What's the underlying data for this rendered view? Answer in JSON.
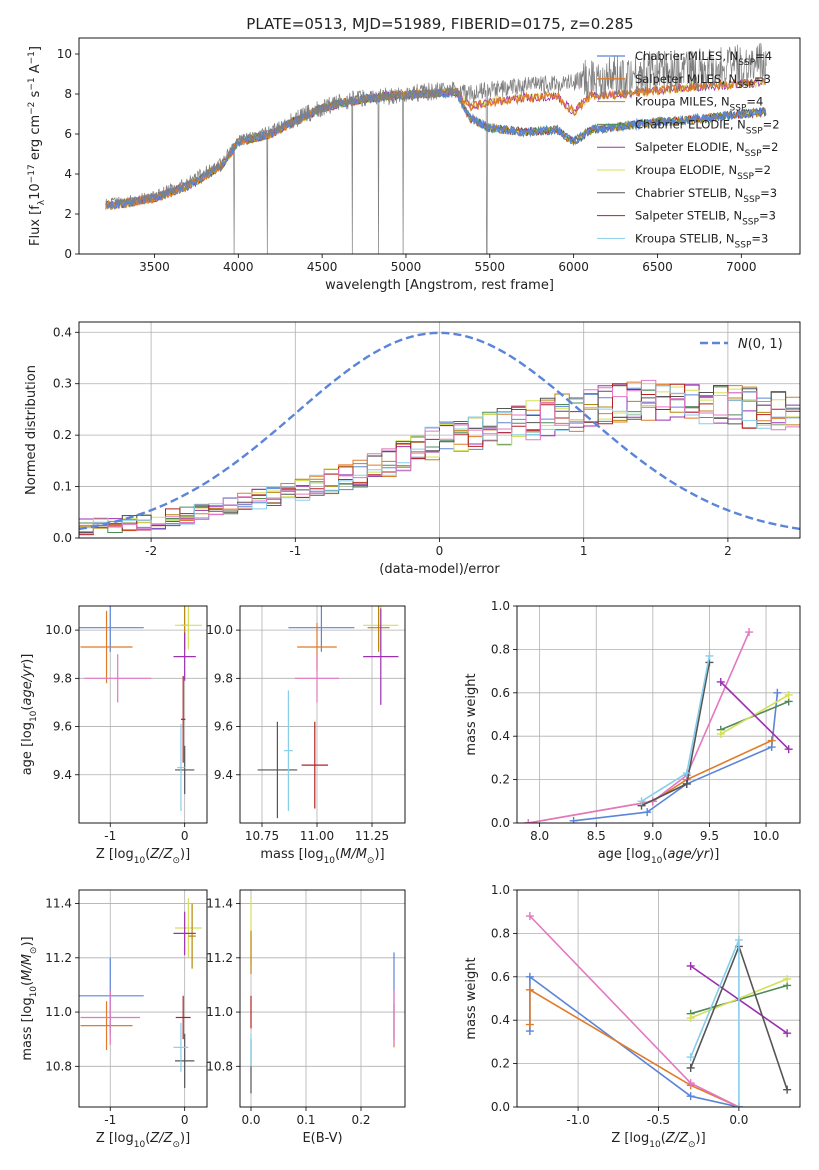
{
  "figure": {
    "title": "PLATE=0513, MJD=51989, FIBERID=0175, z=0.285"
  },
  "chart_data": [
    {
      "id": "spectrum",
      "type": "line",
      "title": "PLATE=0513, MJD=51989, FIBERID=0175, z=0.285",
      "xlabel": "wavelength [Angstrom, rest frame]",
      "ylabel": "Flux [f_λ 10^-17 erg cm^-2 s^-1 A^-1]",
      "xlim": [
        3050,
        7350
      ],
      "ylim": [
        0,
        10.8
      ],
      "xticks": [
        3500,
        4000,
        4500,
        5000,
        5500,
        6000,
        6500,
        7000
      ],
      "yticks": [
        0,
        2,
        4,
        6,
        8,
        10
      ],
      "grid": false,
      "legend": "top-right",
      "data_envelope": {
        "x": [
          3210,
          3300,
          3500,
          3700,
          3900,
          4000,
          4200,
          4300,
          4500,
          4700,
          4900,
          5100,
          5300,
          5380,
          5500,
          5700,
          5900,
          6000,
          6100,
          6300,
          6500,
          6800,
          7000,
          7150
        ],
        "y": [
          2.5,
          2.6,
          2.9,
          3.6,
          4.6,
          5.7,
          6.2,
          6.6,
          7.3,
          7.8,
          7.9,
          8.1,
          8.2,
          8.0,
          8.2,
          8.4,
          8.5,
          8.6,
          8.8,
          8.9,
          9.1,
          9.3,
          9.4,
          9.5
        ]
      },
      "model_high": {
        "x": [
          3210,
          3300,
          3500,
          3700,
          3900,
          4000,
          4200,
          4300,
          4500,
          4700,
          4900,
          5100,
          5300,
          5380,
          5500,
          5700,
          5900,
          6000,
          6100,
          6300,
          6500,
          6800,
          7000,
          7150
        ],
        "y": [
          2.4,
          2.5,
          2.8,
          3.4,
          4.4,
          5.6,
          6.0,
          6.5,
          7.3,
          7.7,
          7.9,
          8.0,
          8.1,
          7.4,
          7.6,
          7.8,
          7.9,
          7.1,
          7.9,
          8.0,
          8.2,
          8.4,
          8.5,
          8.6
        ]
      },
      "model_low": {
        "x": [
          3210,
          3300,
          3500,
          3700,
          3900,
          4000,
          4200,
          4300,
          4500,
          4700,
          4900,
          5100,
          5300,
          5380,
          5500,
          5700,
          5900,
          6000,
          6100,
          6300,
          6500,
          6800,
          7000,
          7150
        ],
        "y": [
          2.4,
          2.5,
          2.8,
          3.4,
          4.4,
          5.6,
          6.0,
          6.5,
          7.3,
          7.7,
          7.9,
          8.0,
          8.1,
          6.8,
          6.3,
          6.1,
          6.2,
          5.6,
          6.2,
          6.4,
          6.6,
          6.8,
          7.0,
          7.1
        ]
      },
      "series": [
        {
          "name": "Chabrier MILES, N_SSP=4",
          "label_main": "Chabrier MILES, N",
          "label_sub": "SSP",
          "label_tail": "=4",
          "color": "#5b85d9",
          "width": 1.3
        },
        {
          "name": "Salpeter MILES, N_SSP=3",
          "label_main": "Salpeter MILES, N",
          "label_sub": "SSP",
          "label_tail": "=3",
          "color": "#e07b2a",
          "width": 1.3
        },
        {
          "name": "Kroupa MILES, N_SSP=4",
          "label_main": "Kroupa MILES, N",
          "label_sub": "SSP",
          "label_tail": "=4",
          "color": "#b8860b",
          "width": 0.8
        },
        {
          "name": "Chabrier ELODIE, N_SSP=2",
          "label_main": "Chabrier ELODIE, N",
          "label_sub": "SSP",
          "label_tail": "=2",
          "color": "#4f8a5a",
          "width": 0.8
        },
        {
          "name": "Salpeter ELODIE, N_SSP=2",
          "label_main": "Salpeter ELODIE, N",
          "label_sub": "SSP",
          "label_tail": "=2",
          "color": "#9b30b0",
          "width": 0.8
        },
        {
          "name": "Kroupa ELODIE, N_SSP=2",
          "label_main": "Kroupa ELODIE, N",
          "label_sub": "SSP",
          "label_tail": "=2",
          "color": "#d5e05a",
          "width": 0.8
        },
        {
          "name": "Chabrier STELIB, N_SSP=3",
          "label_main": "Chabrier STELIB, N",
          "label_sub": "SSP",
          "label_tail": "=3",
          "color": "#555555",
          "width": 0.8
        },
        {
          "name": "Salpeter STELIB, N_SSP=3",
          "label_main": "Salpeter STELIB, N",
          "label_sub": "SSP",
          "label_tail": "=3",
          "color": "#b22222",
          "width": 0.8
        },
        {
          "name": "Kroupa STELIB, N_SSP=3",
          "label_main": "Kroupa STELIB, N",
          "label_sub": "SSP",
          "label_tail": "=3",
          "color": "#87ceeb",
          "width": 0.8
        }
      ]
    },
    {
      "id": "residuals",
      "type": "line",
      "xlabel": "(data-model)/error",
      "ylabel": "Normed distribution",
      "xlim": [
        -2.5,
        2.5
      ],
      "ylim": [
        0,
        0.42
      ],
      "xticks": [
        -2,
        -1,
        0,
        1,
        2
      ],
      "yticks": [
        0.0,
        0.1,
        0.2,
        0.3,
        0.4
      ],
      "grid": true,
      "legend": "top-right",
      "gaussian_label": "N(0, 1)",
      "gaussian": {
        "mu": 0,
        "sigma": 1,
        "color": "#5b85d9"
      },
      "histogram_trend": {
        "x": [
          -2.5,
          -2.0,
          -1.5,
          -1.0,
          -0.5,
          0.0,
          0.5,
          1.0,
          1.5,
          2.0,
          2.5
        ],
        "y": [
          0.02,
          0.03,
          0.06,
          0.09,
          0.13,
          0.19,
          0.22,
          0.25,
          0.27,
          0.26,
          0.24
        ]
      },
      "bin_width": 0.1,
      "series_colors": [
        "#5b85d9",
        "#e07b2a",
        "#b8860b",
        "#4f8a5a",
        "#9b30b0",
        "#d5e05a",
        "#555555",
        "#b22222",
        "#87ceeb",
        "#e377c2"
      ]
    },
    {
      "id": "age_vs_Z",
      "type": "scatter",
      "xlabel": "Z [log10(Z/Z⊙)]",
      "ylabel": "age [log10(age/yr)]",
      "xlim": [
        -1.42,
        0.3
      ],
      "ylim": [
        9.2,
        10.1
      ],
      "xticks": [
        -1,
        0
      ],
      "yticks": [
        9.4,
        9.6,
        9.8,
        10.0
      ],
      "grid": true,
      "points": [
        {
          "x": -1.0,
          "y": 10.01,
          "xerr": 0.45,
          "yerr": 0.1,
          "color": "#5b85d9"
        },
        {
          "x": -1.05,
          "y": 9.93,
          "xerr": 0.35,
          "yerr": 0.15,
          "color": "#e07b2a"
        },
        {
          "x": -0.9,
          "y": 9.8,
          "xerr": 0.45,
          "yerr": 0.1,
          "color": "#e377c2"
        },
        {
          "x": 0.0,
          "y": 10.02,
          "xerr": 0.05,
          "yerr": 0.1,
          "color": "#b8860b"
        },
        {
          "x": 0.05,
          "y": 10.02,
          "xerr": 0.18,
          "yerr": 0.1,
          "color": "#d5e05a"
        },
        {
          "x": 0.0,
          "y": 9.89,
          "xerr": 0.15,
          "yerr": 0.1,
          "color": "#9b30b0"
        },
        {
          "x": -0.02,
          "y": 9.63,
          "xerr": 0.03,
          "yerr": 0.18,
          "color": "#b22222"
        },
        {
          "x": 0.0,
          "y": 9.42,
          "xerr": 0.13,
          "yerr": 0.1,
          "color": "#555555"
        },
        {
          "x": -0.05,
          "y": 9.43,
          "xerr": 0.05,
          "yerr": 0.18,
          "color": "#87ceeb"
        }
      ]
    },
    {
      "id": "age_vs_mass",
      "type": "scatter",
      "xlabel": "mass [log10(M/M⊙)]",
      "ylabel": "",
      "xlim": [
        10.65,
        11.4
      ],
      "ylim": [
        9.2,
        10.1
      ],
      "xticks": [
        10.75,
        11.0,
        11.25
      ],
      "yticks": [
        9.4,
        9.6,
        9.8,
        10.0
      ],
      "grid": true,
      "points": [
        {
          "x": 11.02,
          "y": 10.01,
          "xerr": 0.15,
          "yerr": 0.1,
          "color": "#5b85d9"
        },
        {
          "x": 11.0,
          "y": 9.93,
          "xerr": 0.09,
          "yerr": 0.1,
          "color": "#e07b2a"
        },
        {
          "x": 11.0,
          "y": 9.8,
          "xerr": 0.1,
          "yerr": 0.1,
          "color": "#e377c2"
        },
        {
          "x": 11.29,
          "y": 10.02,
          "xerr": 0.08,
          "yerr": 0.1,
          "color": "#d5e05a"
        },
        {
          "x": 11.28,
          "y": 10.01,
          "xerr": 0.05,
          "yerr": 0.1,
          "color": "#b8860b"
        },
        {
          "x": 11.29,
          "y": 9.89,
          "xerr": 0.08,
          "yerr": 0.2,
          "color": "#9b30b0"
        },
        {
          "x": 10.99,
          "y": 9.44,
          "xerr": 0.06,
          "yerr": 0.18,
          "color": "#b22222"
        },
        {
          "x": 10.82,
          "y": 9.42,
          "xerr": 0.09,
          "yerr": 0.2,
          "color": "#555555"
        },
        {
          "x": 10.87,
          "y": 9.5,
          "xerr": 0.02,
          "yerr": 0.25,
          "color": "#87ceeb"
        }
      ]
    },
    {
      "id": "weight_vs_age",
      "type": "line",
      "xlabel": "age [log10(age/yr)]",
      "ylabel": "mass weight",
      "xlim": [
        7.8,
        10.3
      ],
      "ylim": [
        0,
        1.0
      ],
      "xticks": [
        8.0,
        8.5,
        9.0,
        9.5,
        10.0
      ],
      "yticks": [
        0.0,
        0.2,
        0.4,
        0.6,
        0.8,
        1.0
      ],
      "grid": true,
      "series": [
        {
          "color": "#5b85d9",
          "x": [
            8.3,
            8.95,
            9.3,
            10.05,
            10.1
          ],
          "y": [
            0.01,
            0.05,
            0.18,
            0.35,
            0.6
          ]
        },
        {
          "color": "#e07b2a",
          "x": [
            7.9,
            9.0,
            9.3,
            10.05
          ],
          "y": [
            0.0,
            0.1,
            0.2,
            0.38
          ]
        },
        {
          "color": "#e377c2",
          "x": [
            7.9,
            9.0,
            9.3,
            9.85
          ],
          "y": [
            0.0,
            0.1,
            0.22,
            0.88
          ]
        },
        {
          "color": "#4f8a5a",
          "x": [
            9.6,
            10.2
          ],
          "y": [
            0.43,
            0.56
          ]
        },
        {
          "color": "#d5e05a",
          "x": [
            9.6,
            10.2
          ],
          "y": [
            0.41,
            0.59
          ]
        },
        {
          "color": "#9b30b0",
          "x": [
            9.6,
            10.2
          ],
          "y": [
            0.65,
            0.34
          ]
        },
        {
          "color": "#555555",
          "x": [
            8.9,
            9.3,
            9.5
          ],
          "y": [
            0.08,
            0.18,
            0.74
          ]
        },
        {
          "color": "#87ceeb",
          "x": [
            8.9,
            9.3,
            9.5
          ],
          "y": [
            0.1,
            0.23,
            0.77
          ]
        }
      ]
    },
    {
      "id": "mass_vs_Z",
      "type": "scatter",
      "xlabel": "Z [log10(Z/Z⊙)]",
      "ylabel": "mass [log10(M/M⊙)]",
      "xlim": [
        -1.42,
        0.3
      ],
      "ylim": [
        10.65,
        11.45
      ],
      "xticks": [
        -1,
        0
      ],
      "yticks": [
        10.8,
        11.0,
        11.2,
        11.4
      ],
      "grid": true,
      "points": [
        {
          "x": -1.0,
          "y": 11.06,
          "xerr": 0.45,
          "yerr": 0.14,
          "color": "#5b85d9"
        },
        {
          "x": -1.05,
          "y": 10.95,
          "xerr": 0.35,
          "yerr": 0.09,
          "color": "#e07b2a"
        },
        {
          "x": -1.0,
          "y": 10.98,
          "xerr": 0.4,
          "yerr": 0.1,
          "color": "#e377c2"
        },
        {
          "x": 0.05,
          "y": 11.31,
          "xerr": 0.18,
          "yerr": 0.11,
          "color": "#d5e05a"
        },
        {
          "x": 0.1,
          "y": 11.28,
          "xerr": 0.05,
          "yerr": 0.12,
          "color": "#b8860b"
        },
        {
          "x": 0.0,
          "y": 11.29,
          "xerr": 0.15,
          "yerr": 0.08,
          "color": "#9b30b0"
        },
        {
          "x": -0.02,
          "y": 10.98,
          "xerr": 0.1,
          "yerr": 0.08,
          "color": "#b22222"
        },
        {
          "x": 0.0,
          "y": 10.82,
          "xerr": 0.13,
          "yerr": 0.1,
          "color": "#555555"
        },
        {
          "x": -0.05,
          "y": 10.87,
          "xerr": 0.1,
          "yerr": 0.09,
          "color": "#87ceeb"
        }
      ]
    },
    {
      "id": "mass_vs_EBV",
      "type": "scatter",
      "xlabel": "E(B-V)",
      "ylabel": "",
      "xlim": [
        -0.02,
        0.28
      ],
      "ylim": [
        10.65,
        11.45
      ],
      "xticks": [
        0.0,
        0.1,
        0.2
      ],
      "yticks": [
        10.8,
        11.0,
        11.2,
        11.4
      ],
      "grid": true,
      "points": [
        {
          "x": 0.0,
          "y": 11.3,
          "xerr": 0.0,
          "yerr": 0.12,
          "color": "#d5e05a"
        },
        {
          "x": 0.0,
          "y": 11.22,
          "xerr": 0.0,
          "yerr": 0.08,
          "color": "#b8860b"
        },
        {
          "x": 0.0,
          "y": 11.0,
          "xerr": 0.0,
          "yerr": 0.06,
          "color": "#b22222"
        },
        {
          "x": 0.0,
          "y": 10.8,
          "xerr": 0.0,
          "yerr": 0.1,
          "color": "#555555"
        },
        {
          "x": 0.0,
          "y": 10.86,
          "xerr": 0.0,
          "yerr": 0.06,
          "color": "#87ceeb"
        },
        {
          "x": 0.26,
          "y": 11.06,
          "xerr": 0.0,
          "yerr": 0.16,
          "color": "#5b85d9"
        },
        {
          "x": 0.26,
          "y": 10.95,
          "xerr": 0.0,
          "yerr": 0.08,
          "color": "#e07b2a"
        },
        {
          "x": 0.26,
          "y": 10.98,
          "xerr": 0.0,
          "yerr": 0.1,
          "color": "#e377c2"
        }
      ]
    },
    {
      "id": "weight_vs_Z",
      "type": "line",
      "xlabel": "Z [log10(Z/Z⊙)]",
      "ylabel": "mass weight",
      "xlim": [
        -1.38,
        0.38
      ],
      "ylim": [
        0,
        1.0
      ],
      "xticks": [
        -1.0,
        -0.5,
        0.0
      ],
      "yticks": [
        0.0,
        0.2,
        0.4,
        0.6,
        0.8,
        1.0
      ],
      "grid": true,
      "series": [
        {
          "color": "#5b85d9",
          "x": [
            -1.3,
            -1.3,
            -0.3,
            0.0
          ],
          "y": [
            0.35,
            0.6,
            0.05,
            0.0
          ]
        },
        {
          "color": "#e07b2a",
          "x": [
            -1.3,
            -1.3,
            -0.3,
            0.0
          ],
          "y": [
            0.38,
            0.54,
            0.1,
            0.0
          ]
        },
        {
          "color": "#e377c2",
          "x": [
            -1.3,
            -0.3,
            0.0
          ],
          "y": [
            0.88,
            0.11,
            0.0
          ]
        },
        {
          "color": "#4f8a5a",
          "x": [
            -0.3,
            0.3
          ],
          "y": [
            0.43,
            0.56
          ]
        },
        {
          "color": "#d5e05a",
          "x": [
            -0.3,
            0.3
          ],
          "y": [
            0.41,
            0.59
          ]
        },
        {
          "color": "#9b30b0",
          "x": [
            -0.3,
            0.3
          ],
          "y": [
            0.65,
            0.34
          ]
        },
        {
          "color": "#555555",
          "x": [
            -0.3,
            0.0,
            0.3
          ],
          "y": [
            0.18,
            0.74,
            0.08
          ]
        },
        {
          "color": "#87ceeb",
          "x": [
            -0.3,
            0.0,
            0.0
          ],
          "y": [
            0.23,
            0.77,
            0.0
          ]
        }
      ]
    }
  ]
}
